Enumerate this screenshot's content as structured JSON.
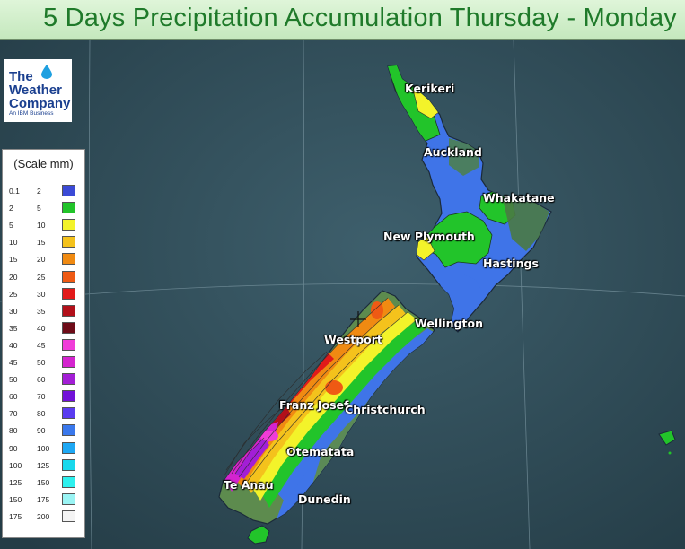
{
  "title": "5 Days Precipitation Accumulation Thursday - Monday",
  "logo": {
    "line1": "The",
    "line2": "Weather",
    "line3": "Company",
    "subtitle": "An IBM Business",
    "icon": "water-drop-icon"
  },
  "legend": {
    "title": "(Scale mm)",
    "rows": [
      {
        "from": "0.1",
        "to": "2",
        "color": "#3b4ad6"
      },
      {
        "from": "2",
        "to": "5",
        "color": "#22c42a"
      },
      {
        "from": "5",
        "to": "10",
        "color": "#f3f32a"
      },
      {
        "from": "10",
        "to": "15",
        "color": "#f4c21c"
      },
      {
        "from": "15",
        "to": "20",
        "color": "#f08a12"
      },
      {
        "from": "20",
        "to": "25",
        "color": "#ef5a14"
      },
      {
        "from": "25",
        "to": "30",
        "color": "#e21a1a"
      },
      {
        "from": "30",
        "to": "35",
        "color": "#b2101a"
      },
      {
        "from": "35",
        "to": "40",
        "color": "#6e0c18"
      },
      {
        "from": "40",
        "to": "45",
        "color": "#f03cd8"
      },
      {
        "from": "45",
        "to": "50",
        "color": "#d424cf"
      },
      {
        "from": "50",
        "to": "60",
        "color": "#a31ed6"
      },
      {
        "from": "60",
        "to": "70",
        "color": "#7212d8"
      },
      {
        "from": "70",
        "to": "80",
        "color": "#5a3cf0"
      },
      {
        "from": "80",
        "to": "90",
        "color": "#3a78ec"
      },
      {
        "from": "90",
        "to": "100",
        "color": "#1ea8f4"
      },
      {
        "from": "100",
        "to": "125",
        "color": "#18d8ec"
      },
      {
        "from": "125",
        "to": "150",
        "color": "#2ef0ee"
      },
      {
        "from": "150",
        "to": "175",
        "color": "#9af4f4"
      },
      {
        "from": "175",
        "to": "200",
        "color": "#f4f4f4"
      }
    ]
  },
  "cities": [
    {
      "name": "Kerikeri"
    },
    {
      "name": "Auckland"
    },
    {
      "name": "Whakatane"
    },
    {
      "name": "New Plymouth"
    },
    {
      "name": "Hastings"
    },
    {
      "name": "Wellington"
    },
    {
      "name": "Westport"
    },
    {
      "name": "Franz Josef"
    },
    {
      "name": "Christchurch"
    },
    {
      "name": "Otematata"
    },
    {
      "name": "Te Anau"
    },
    {
      "name": "Dunedin"
    }
  ]
}
